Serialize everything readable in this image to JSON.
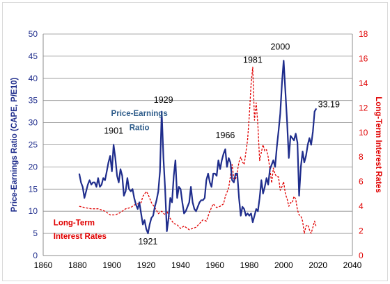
{
  "chart_data": {
    "type": "line",
    "title": "",
    "left_axis": {
      "label": "Price-Earnings Ratio (CAPE, P/E10)",
      "ylim": [
        0,
        50
      ],
      "ticks": [
        0,
        5,
        10,
        15,
        20,
        25,
        30,
        35,
        40,
        45,
        50
      ],
      "color": "#1F2D8C"
    },
    "right_axis": {
      "label": "Long-Term Interest Rates",
      "ylim": [
        0,
        18
      ],
      "ticks": [
        0,
        2,
        4,
        6,
        8,
        10,
        12,
        14,
        16,
        18
      ],
      "color": "#E00000"
    },
    "x_axis": {
      "xlim": [
        1860,
        2040
      ],
      "ticks": [
        1860,
        1880,
        1900,
        1920,
        1940,
        1960,
        1980,
        2000,
        2020,
        2040
      ]
    },
    "grid": "horizontal",
    "series": [
      {
        "name": "Price-Earnings Ratio",
        "axis": "left",
        "color": "#1F2D8C",
        "style": "solid",
        "points": [
          [
            1881,
            18.5
          ],
          [
            1882,
            16.5
          ],
          [
            1883,
            15.5
          ],
          [
            1884,
            13.0
          ],
          [
            1885,
            14.5
          ],
          [
            1886,
            16.0
          ],
          [
            1887,
            17.0
          ],
          [
            1888,
            16.0
          ],
          [
            1889,
            16.5
          ],
          [
            1890,
            16.5
          ],
          [
            1891,
            15.5
          ],
          [
            1892,
            17.5
          ],
          [
            1893,
            15.5
          ],
          [
            1894,
            16.0
          ],
          [
            1895,
            17.5
          ],
          [
            1896,
            17.0
          ],
          [
            1897,
            19.0
          ],
          [
            1898,
            21.0
          ],
          [
            1899,
            22.5
          ],
          [
            1900,
            19.0
          ],
          [
            1901,
            25.0
          ],
          [
            1902,
            22.0
          ],
          [
            1903,
            18.0
          ],
          [
            1904,
            16.5
          ],
          [
            1905,
            19.5
          ],
          [
            1906,
            18.0
          ],
          [
            1907,
            13.5
          ],
          [
            1908,
            14.5
          ],
          [
            1909,
            17.5
          ],
          [
            1910,
            15.0
          ],
          [
            1911,
            14.5
          ],
          [
            1912,
            15.0
          ],
          [
            1913,
            13.0
          ],
          [
            1914,
            11.5
          ],
          [
            1915,
            10.5
          ],
          [
            1916,
            12.0
          ],
          [
            1917,
            9.5
          ],
          [
            1918,
            7.0
          ],
          [
            1919,
            8.0
          ],
          [
            1920,
            6.0
          ],
          [
            1921,
            5.0
          ],
          [
            1922,
            7.0
          ],
          [
            1923,
            8.5
          ],
          [
            1924,
            9.0
          ],
          [
            1925,
            11.0
          ],
          [
            1926,
            12.5
          ],
          [
            1927,
            14.5
          ],
          [
            1928,
            19.0
          ],
          [
            1929,
            32.5
          ],
          [
            1930,
            22.0
          ],
          [
            1931,
            15.0
          ],
          [
            1932,
            5.5
          ],
          [
            1933,
            8.5
          ],
          [
            1934,
            13.0
          ],
          [
            1935,
            12.0
          ],
          [
            1936,
            18.0
          ],
          [
            1937,
            21.5
          ],
          [
            1938,
            13.0
          ],
          [
            1939,
            15.5
          ],
          [
            1940,
            15.0
          ],
          [
            1941,
            12.0
          ],
          [
            1942,
            9.5
          ],
          [
            1943,
            10.0
          ],
          [
            1944,
            11.0
          ],
          [
            1945,
            12.0
          ],
          [
            1946,
            15.5
          ],
          [
            1947,
            12.0
          ],
          [
            1948,
            10.5
          ],
          [
            1949,
            10.0
          ],
          [
            1950,
            11.0
          ],
          [
            1951,
            12.0
          ],
          [
            1952,
            12.5
          ],
          [
            1953,
            12.5
          ],
          [
            1954,
            13.0
          ],
          [
            1955,
            17.0
          ],
          [
            1956,
            18.5
          ],
          [
            1957,
            16.5
          ],
          [
            1958,
            15.5
          ],
          [
            1959,
            18.5
          ],
          [
            1960,
            18.5
          ],
          [
            1961,
            18.0
          ],
          [
            1962,
            21.5
          ],
          [
            1963,
            19.5
          ],
          [
            1964,
            21.5
          ],
          [
            1965,
            23.0
          ],
          [
            1966,
            24.0
          ],
          [
            1967,
            20.0
          ],
          [
            1968,
            22.0
          ],
          [
            1969,
            21.0
          ],
          [
            1970,
            17.0
          ],
          [
            1971,
            16.5
          ],
          [
            1972,
            18.5
          ],
          [
            1973,
            18.5
          ],
          [
            1974,
            13.0
          ],
          [
            1975,
            9.0
          ],
          [
            1976,
            11.0
          ],
          [
            1977,
            10.5
          ],
          [
            1978,
            9.0
          ],
          [
            1979,
            9.5
          ],
          [
            1980,
            9.0
          ],
          [
            1981,
            9.5
          ],
          [
            1982,
            7.5
          ],
          [
            1983,
            9.0
          ],
          [
            1984,
            10.5
          ],
          [
            1985,
            10.0
          ],
          [
            1986,
            13.0
          ],
          [
            1987,
            17.0
          ],
          [
            1988,
            14.0
          ],
          [
            1989,
            15.5
          ],
          [
            1990,
            17.5
          ],
          [
            1991,
            16.0
          ],
          [
            1992,
            19.5
          ],
          [
            1993,
            20.5
          ],
          [
            1994,
            21.5
          ],
          [
            1995,
            20.0
          ],
          [
            1996,
            24.5
          ],
          [
            1997,
            28.0
          ],
          [
            1998,
            32.0
          ],
          [
            1999,
            39.0
          ],
          [
            2000,
            44.0
          ],
          [
            2001,
            37.0
          ],
          [
            2002,
            30.0
          ],
          [
            2003,
            22.0
          ],
          [
            2004,
            27.0
          ],
          [
            2005,
            26.5
          ],
          [
            2006,
            26.0
          ],
          [
            2007,
            27.5
          ],
          [
            2008,
            25.5
          ],
          [
            2009,
            13.5
          ],
          [
            2010,
            20.0
          ],
          [
            2011,
            23.5
          ],
          [
            2012,
            21.0
          ],
          [
            2013,
            22.5
          ],
          [
            2014,
            25.0
          ],
          [
            2015,
            26.5
          ],
          [
            2016,
            25.0
          ],
          [
            2017,
            28.0
          ],
          [
            2018,
            32.5
          ],
          [
            2019,
            33.19
          ]
        ]
      },
      {
        "name": "Long-Term Interest Rates",
        "axis": "right",
        "color": "#E00000",
        "style": "dashed",
        "points": [
          [
            1881,
            4.0
          ],
          [
            1884,
            3.9
          ],
          [
            1888,
            3.8
          ],
          [
            1892,
            3.8
          ],
          [
            1896,
            3.6
          ],
          [
            1899,
            3.3
          ],
          [
            1902,
            3.3
          ],
          [
            1905,
            3.5
          ],
          [
            1908,
            3.8
          ],
          [
            1911,
            3.9
          ],
          [
            1913,
            4.1
          ],
          [
            1915,
            4.2
          ],
          [
            1917,
            4.3
          ],
          [
            1918,
            4.8
          ],
          [
            1920,
            5.2
          ],
          [
            1921,
            5.0
          ],
          [
            1923,
            4.3
          ],
          [
            1925,
            3.9
          ],
          [
            1927,
            3.4
          ],
          [
            1929,
            3.6
          ],
          [
            1931,
            3.3
          ],
          [
            1932,
            3.6
          ],
          [
            1934,
            3.0
          ],
          [
            1936,
            2.6
          ],
          [
            1938,
            2.5
          ],
          [
            1940,
            2.2
          ],
          [
            1942,
            2.4
          ],
          [
            1945,
            2.1
          ],
          [
            1947,
            2.2
          ],
          [
            1949,
            2.3
          ],
          [
            1951,
            2.6
          ],
          [
            1953,
            2.9
          ],
          [
            1955,
            2.8
          ],
          [
            1957,
            3.6
          ],
          [
            1959,
            4.2
          ],
          [
            1961,
            3.9
          ],
          [
            1963,
            4.0
          ],
          [
            1965,
            4.2
          ],
          [
            1966,
            4.8
          ],
          [
            1968,
            5.5
          ],
          [
            1970,
            7.4
          ],
          [
            1971,
            6.2
          ],
          [
            1972,
            6.2
          ],
          [
            1973,
            6.8
          ],
          [
            1974,
            7.6
          ],
          [
            1975,
            8.0
          ],
          [
            1976,
            7.6
          ],
          [
            1977,
            7.4
          ],
          [
            1978,
            8.4
          ],
          [
            1979,
            9.4
          ],
          [
            1980,
            11.4
          ],
          [
            1981,
            13.9
          ],
          [
            1982,
            15.3
          ],
          [
            1983,
            11.0
          ],
          [
            1984,
            12.4
          ],
          [
            1985,
            10.6
          ],
          [
            1986,
            7.7
          ],
          [
            1987,
            8.4
          ],
          [
            1988,
            9.0
          ],
          [
            1989,
            8.5
          ],
          [
            1990,
            8.6
          ],
          [
            1991,
            8.0
          ],
          [
            1992,
            7.0
          ],
          [
            1993,
            5.9
          ],
          [
            1994,
            7.1
          ],
          [
            1995,
            6.6
          ],
          [
            1996,
            6.4
          ],
          [
            1997,
            6.4
          ],
          [
            1998,
            5.3
          ],
          [
            1999,
            5.6
          ],
          [
            2000,
            6.0
          ],
          [
            2001,
            5.0
          ],
          [
            2002,
            4.6
          ],
          [
            2003,
            4.0
          ],
          [
            2004,
            4.3
          ],
          [
            2005,
            4.3
          ],
          [
            2006,
            4.8
          ],
          [
            2007,
            4.6
          ],
          [
            2008,
            3.7
          ],
          [
            2009,
            3.3
          ],
          [
            2010,
            3.2
          ],
          [
            2011,
            2.8
          ],
          [
            2012,
            1.8
          ],
          [
            2013,
            2.4
          ],
          [
            2014,
            2.5
          ],
          [
            2015,
            2.1
          ],
          [
            2016,
            1.8
          ],
          [
            2017,
            2.3
          ],
          [
            2018,
            2.8
          ],
          [
            2019,
            2.3
          ]
        ]
      }
    ],
    "annotations": [
      {
        "text": "1901",
        "axis": "left",
        "x": 1901,
        "y": 27.5,
        "anchor": "middle",
        "color": "#000000",
        "bold": false
      },
      {
        "text": "1929",
        "axis": "left",
        "x": 1930,
        "y": 34.5,
        "anchor": "middle",
        "color": "#000000",
        "bold": false
      },
      {
        "text": "1921",
        "axis": "left",
        "x": 1921,
        "y": 2.5,
        "anchor": "middle",
        "color": "#000000",
        "bold": false
      },
      {
        "text": "1966",
        "axis": "left",
        "x": 1966,
        "y": 26.5,
        "anchor": "middle",
        "color": "#000000",
        "bold": false
      },
      {
        "text": "1981",
        "axis": "left",
        "x": 1982,
        "y": 43.5,
        "anchor": "middle",
        "color": "#000000",
        "bold": false
      },
      {
        "text": "2000",
        "axis": "left",
        "x": 1998,
        "y": 46.5,
        "anchor": "middle",
        "color": "#000000",
        "bold": false
      },
      {
        "text": "33.19",
        "axis": "left",
        "x": 2020,
        "y": 33.5,
        "anchor": "start",
        "color": "#000000",
        "bold": false
      },
      {
        "text": "Price-Earnings",
        "axis": "left",
        "x": 1916,
        "y": 31.5,
        "anchor": "middle",
        "color": "#2E5C8A",
        "bold": true
      },
      {
        "text": "Ratio",
        "axis": "left",
        "x": 1916,
        "y": 28.3,
        "anchor": "middle",
        "color": "#2E5C8A",
        "bold": true
      },
      {
        "text": "Long-Term",
        "axis": "left",
        "x": 1866,
        "y": 6.8,
        "anchor": "start",
        "color": "#E00000",
        "bold": true
      },
      {
        "text": "Interest Rates",
        "axis": "left",
        "x": 1866,
        "y": 3.8,
        "anchor": "start",
        "color": "#E00000",
        "bold": true
      }
    ]
  }
}
